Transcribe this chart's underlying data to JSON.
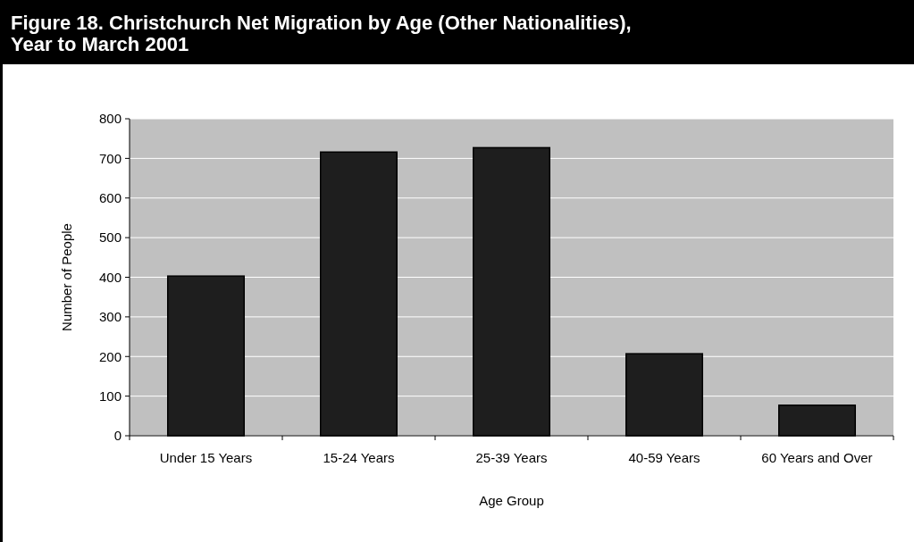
{
  "chart_data": {
    "type": "bar",
    "title": "Figure 18. Christchurch Net Migration by Age (Other Nationalities), Year to March 2001",
    "xlabel": "Age Group",
    "ylabel": "Number of People",
    "categories": [
      "Under 15 Years",
      "15-24 Years",
      "25-39 Years",
      "40-59 Years",
      "60 Years and Over"
    ],
    "values": [
      403,
      716,
      727,
      207,
      77
    ],
    "color": "#1e1e1e",
    "ylim": [
      0,
      800
    ],
    "yticks": [
      0,
      100,
      200,
      300,
      400,
      500,
      600,
      700,
      800
    ],
    "grid": "y"
  }
}
